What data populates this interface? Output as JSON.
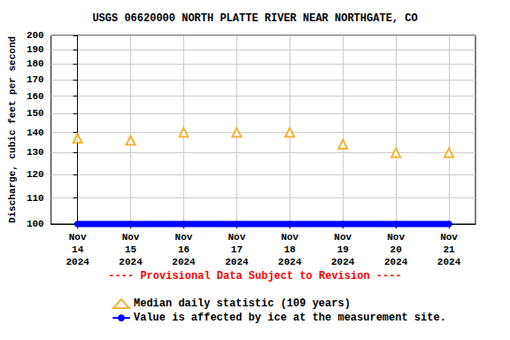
{
  "chart_data": {
    "type": "scatter",
    "title": "USGS 06620000 NORTH PLATTE RIVER NEAR NORTHGATE, CO",
    "ylabel": "Discharge, cubic feet per second",
    "categories": [
      "Nov 14 2024",
      "Nov 15 2024",
      "Nov 16 2024",
      "Nov 17 2024",
      "Nov 18 2024",
      "Nov 19 2024",
      "Nov 20 2024",
      "Nov 21 2024"
    ],
    "series": [
      {
        "name": "Median daily statistic (109 years)",
        "color": "#f0a000",
        "marker": "triangle",
        "values": [
          137,
          136,
          140,
          140,
          140,
          134,
          130,
          130
        ]
      },
      {
        "name": "Value is affected by ice at the measurement site.",
        "color": "#0000ff",
        "marker": "circle",
        "type": "line",
        "line_style": "solid",
        "values": [
          100,
          100,
          100,
          100,
          100,
          100,
          100,
          100
        ]
      }
    ],
    "ylim": [
      100,
      200
    ],
    "yticks": [
      100,
      110,
      120,
      130,
      140,
      150,
      160,
      170,
      180,
      190,
      200
    ],
    "log": "y",
    "grid": true,
    "legend": "bottom",
    "annotations": [
      "---- Provisional Data Subject to Revision ----"
    ]
  }
}
